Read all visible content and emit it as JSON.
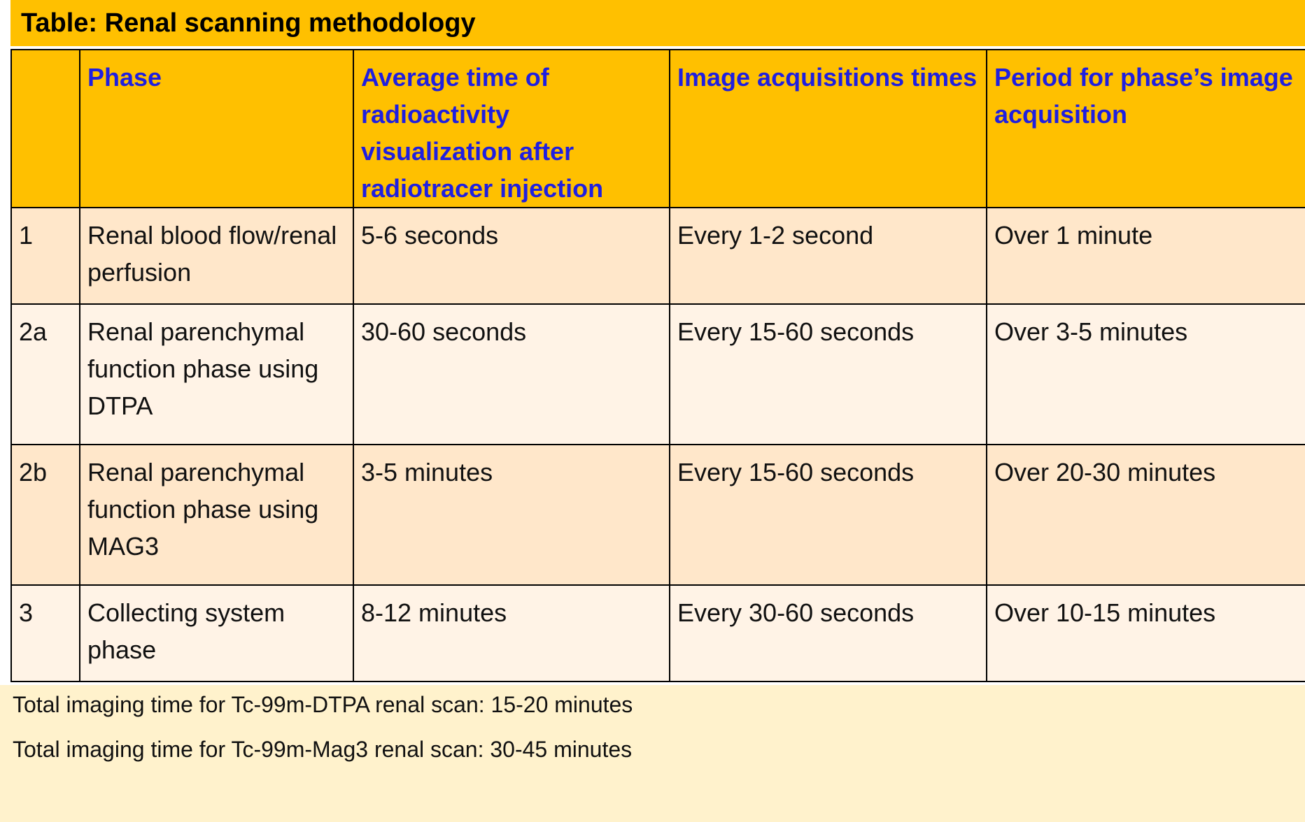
{
  "title": "Table: Renal scanning methodology",
  "table": {
    "headers": [
      "",
      "Phase",
      "Average time of radioactivity visualization after radiotracer injection",
      "Image acquisitions times",
      "Period for phase’s image acquisition"
    ],
    "rows": [
      [
        "1",
        "Renal blood flow/renal perfusion",
        "5-6 seconds",
        "Every 1-2 second",
        "Over 1 minute"
      ],
      [
        "2a",
        "Renal parenchymal function phase using DTPA",
        "30-60 seconds",
        "Every 15-60 seconds",
        "Over 3-5 minutes"
      ],
      [
        "2b",
        "Renal parenchymal function phase using MAG3",
        "3-5 minutes",
        "Every 15-60 seconds",
        "Over 20-30 minutes"
      ],
      [
        "3",
        "Collecting system phase",
        "8-12 minutes",
        "Every 30-60 seconds",
        "Over 10-15 minutes"
      ]
    ]
  },
  "footer": {
    "line1": "Total imaging time for Tc-99m-DTPA renal scan: 15-20 minutes",
    "line2": "Total imaging time for Tc-99m-Mag3 renal scan: 30-45 minutes"
  },
  "colors": {
    "header_bg": "#FFC000",
    "header_text": "#1F1FE0",
    "row_dark_bg": "#FFE7CA",
    "row_light_bg": "#FFF3E6",
    "footer_bg": "#FFF2CC"
  }
}
